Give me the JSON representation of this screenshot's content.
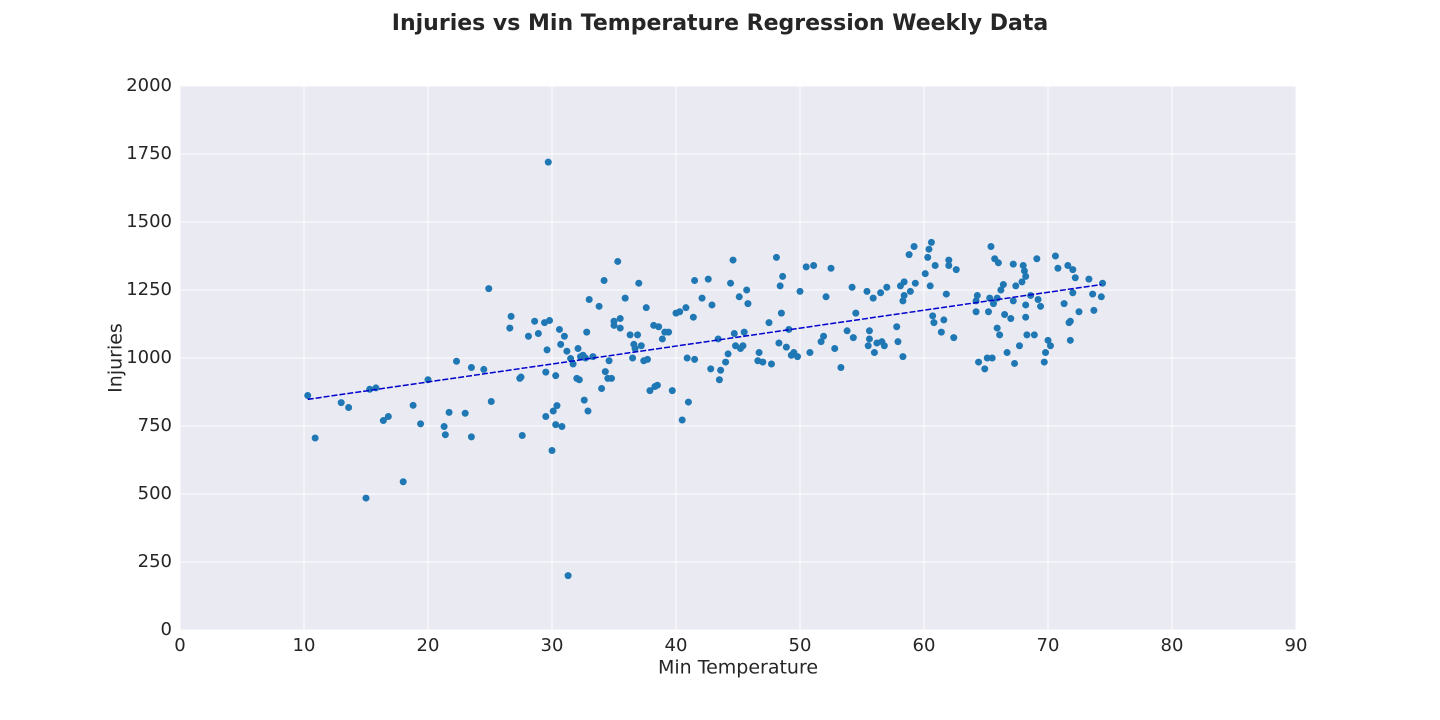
{
  "chart_data": {
    "type": "scatter",
    "title": "Injuries vs Min Temperature Regression Weekly Data",
    "xlabel": "Min Temperature",
    "ylabel": "Injuries",
    "xlim": [
      0,
      90
    ],
    "ylim": [
      0,
      2000
    ],
    "xticks": [
      0,
      10,
      20,
      30,
      40,
      50,
      60,
      70,
      80,
      90
    ],
    "yticks": [
      0,
      250,
      500,
      750,
      1000,
      1250,
      1500,
      1750,
      2000
    ],
    "grid": true,
    "background": "#eaeaf2",
    "series": [
      {
        "type": "scatter",
        "color": "#1f77b4",
        "x": [
          10.3,
          10.9,
          13,
          13.6,
          15,
          15.3,
          15.8,
          16.4,
          16.8,
          18,
          18.8,
          19.4,
          20,
          21.3,
          21.4,
          21.7,
          22.3,
          23,
          23.5,
          23.5,
          24.5,
          24.9,
          25.1,
          26.6,
          26.7,
          27.4,
          27.5,
          27.6,
          28.1,
          28.6,
          28.9,
          29.4,
          29.5,
          29.5,
          29.6,
          29.7,
          29.8,
          30,
          30.1,
          30.3,
          30.3,
          30.4,
          30.6,
          30.7,
          30.8,
          31,
          31.2,
          31.3,
          31.5,
          31.7,
          32,
          32.1,
          32.2,
          32.3,
          32.5,
          32.6,
          32.7,
          32.8,
          32.9,
          33,
          33.3,
          33.8,
          34,
          34.2,
          34.3,
          34.5,
          34.6,
          34.8,
          35,
          35,
          35.3,
          35.5,
          35.5,
          35.9,
          36.3,
          36.5,
          36.6,
          36.7,
          36.9,
          37,
          37.2,
          37.4,
          37.6,
          37.7,
          37.9,
          38.2,
          38.3,
          38.5,
          38.6,
          38.9,
          39.1,
          39.4,
          39.7,
          40,
          40.3,
          40.5,
          40.8,
          40.9,
          41,
          41.4,
          41.5,
          41.5,
          42.1,
          42.6,
          42.8,
          42.9,
          43.4,
          43.5,
          43.6,
          44,
          44.2,
          44.4,
          44.6,
          44.7,
          44.8,
          45.1,
          45.2,
          45.4,
          45.5,
          45.7,
          45.8,
          46.6,
          46.7,
          47,
          47.5,
          47.7,
          48.1,
          48.3,
          48.4,
          48.5,
          48.6,
          48.9,
          49.1,
          49.3,
          49.5,
          49.8,
          50,
          50.5,
          50.8,
          51.1,
          51.7,
          51.9,
          52.1,
          52.5,
          52.8,
          53.3,
          53.8,
          54.2,
          54.3,
          54.5,
          55.4,
          55.5,
          55.6,
          55.6,
          55.9,
          56,
          56.2,
          56.5,
          56.6,
          56.8,
          57,
          57.8,
          57.9,
          58.1,
          58.3,
          58.3,
          58.4,
          58.4,
          58.8,
          58.9,
          59.2,
          59.3,
          60.1,
          60.3,
          60.4,
          60.5,
          60.6,
          60.7,
          60.8,
          60.9,
          61.4,
          61.6,
          61.8,
          62,
          62,
          62.4,
          62.6,
          64.2,
          64.2,
          64.3,
          64.4,
          64.9,
          65.1,
          65.2,
          65.3,
          65.4,
          65.5,
          65.6,
          65.7,
          65.9,
          65.9,
          66,
          66.1,
          66.2,
          66.4,
          66.5,
          66.7,
          67,
          67.2,
          67.2,
          67.3,
          67.4,
          67.7,
          67.9,
          68,
          68.1,
          68.2,
          68.2,
          68.2,
          68.3,
          68.6,
          68.9,
          69.1,
          69.2,
          69.4,
          69.7,
          69.8,
          70,
          70.2,
          70.6,
          70.8,
          71.3,
          71.6,
          71.7,
          71.8,
          71.8,
          72,
          72,
          72.2,
          72.5,
          73.3,
          73.6,
          73.7,
          74.3,
          74.4
        ],
        "values": [
          862,
          706,
          836,
          818,
          485,
          885,
          890,
          770,
          785,
          545,
          826,
          758,
          920,
          748,
          718,
          800,
          988,
          797,
          710,
          965,
          958,
          1255,
          840,
          1110,
          1153,
          925,
          930,
          715,
          1080,
          1135,
          1090,
          1130,
          948,
          785,
          1030,
          1720,
          1138,
          660,
          805,
          755,
          935,
          825,
          1105,
          1050,
          748,
          1080,
          1025,
          200,
          998,
          978,
          925,
          1035,
          920,
          1005,
          1010,
          845,
          1000,
          1095,
          805,
          1215,
          1005,
          1190,
          888,
          1285,
          950,
          925,
          990,
          925,
          1120,
          1135,
          1355,
          1110,
          1145,
          1220,
          1085,
          1000,
          1050,
          1035,
          1085,
          1275,
          1045,
          990,
          1185,
          995,
          880,
          1120,
          895,
          900,
          1115,
          1070,
          1095,
          1095,
          880,
          1165,
          1170,
          772,
          1185,
          1000,
          838,
          1150,
          995,
          1285,
          1220,
          1290,
          960,
          1195,
          1070,
          920,
          955,
          985,
          1015,
          1275,
          1360,
          1090,
          1045,
          1225,
          1035,
          1045,
          1095,
          1250,
          1200,
          990,
          1020,
          985,
          1130,
          978,
          1370,
          1055,
          1265,
          1165,
          1300,
          1040,
          1105,
          1010,
          1020,
          1005,
          1245,
          1335,
          1020,
          1340,
          1060,
          1080,
          1225,
          1330,
          1035,
          965,
          1100,
          1260,
          1075,
          1165,
          1245,
          1045,
          1070,
          1100,
          1220,
          1020,
          1055,
          1240,
          1060,
          1045,
          1260,
          1115,
          1060,
          1265,
          1005,
          1210,
          1230,
          1280,
          1380,
          1245,
          1410,
          1275,
          1310,
          1370,
          1400,
          1265,
          1425,
          1155,
          1130,
          1340,
          1095,
          1140,
          1235,
          1360,
          1340,
          1075,
          1325,
          1170,
          1210,
          1230,
          985,
          960,
          1000,
          1170,
          1220,
          1410,
          1000,
          1200,
          1365,
          1220,
          1110,
          1350,
          1085,
          1250,
          1270,
          1160,
          1020,
          1145,
          1210,
          1345,
          980,
          1265,
          1045,
          1280,
          1340,
          1320,
          1150,
          1195,
          1300,
          1085,
          1230,
          1085,
          1365,
          1215,
          1190,
          985,
          1020,
          1065,
          1045,
          1375,
          1330,
          1200,
          1340,
          1130,
          1065,
          1135,
          1325,
          1240,
          1295,
          1170,
          1290,
          1235,
          1175,
          1225,
          1275
        ]
      },
      {
        "type": "line",
        "color": "#0000cd",
        "x": [
          10.3,
          74.3
        ],
        "values": [
          848,
          1270
        ]
      }
    ]
  }
}
